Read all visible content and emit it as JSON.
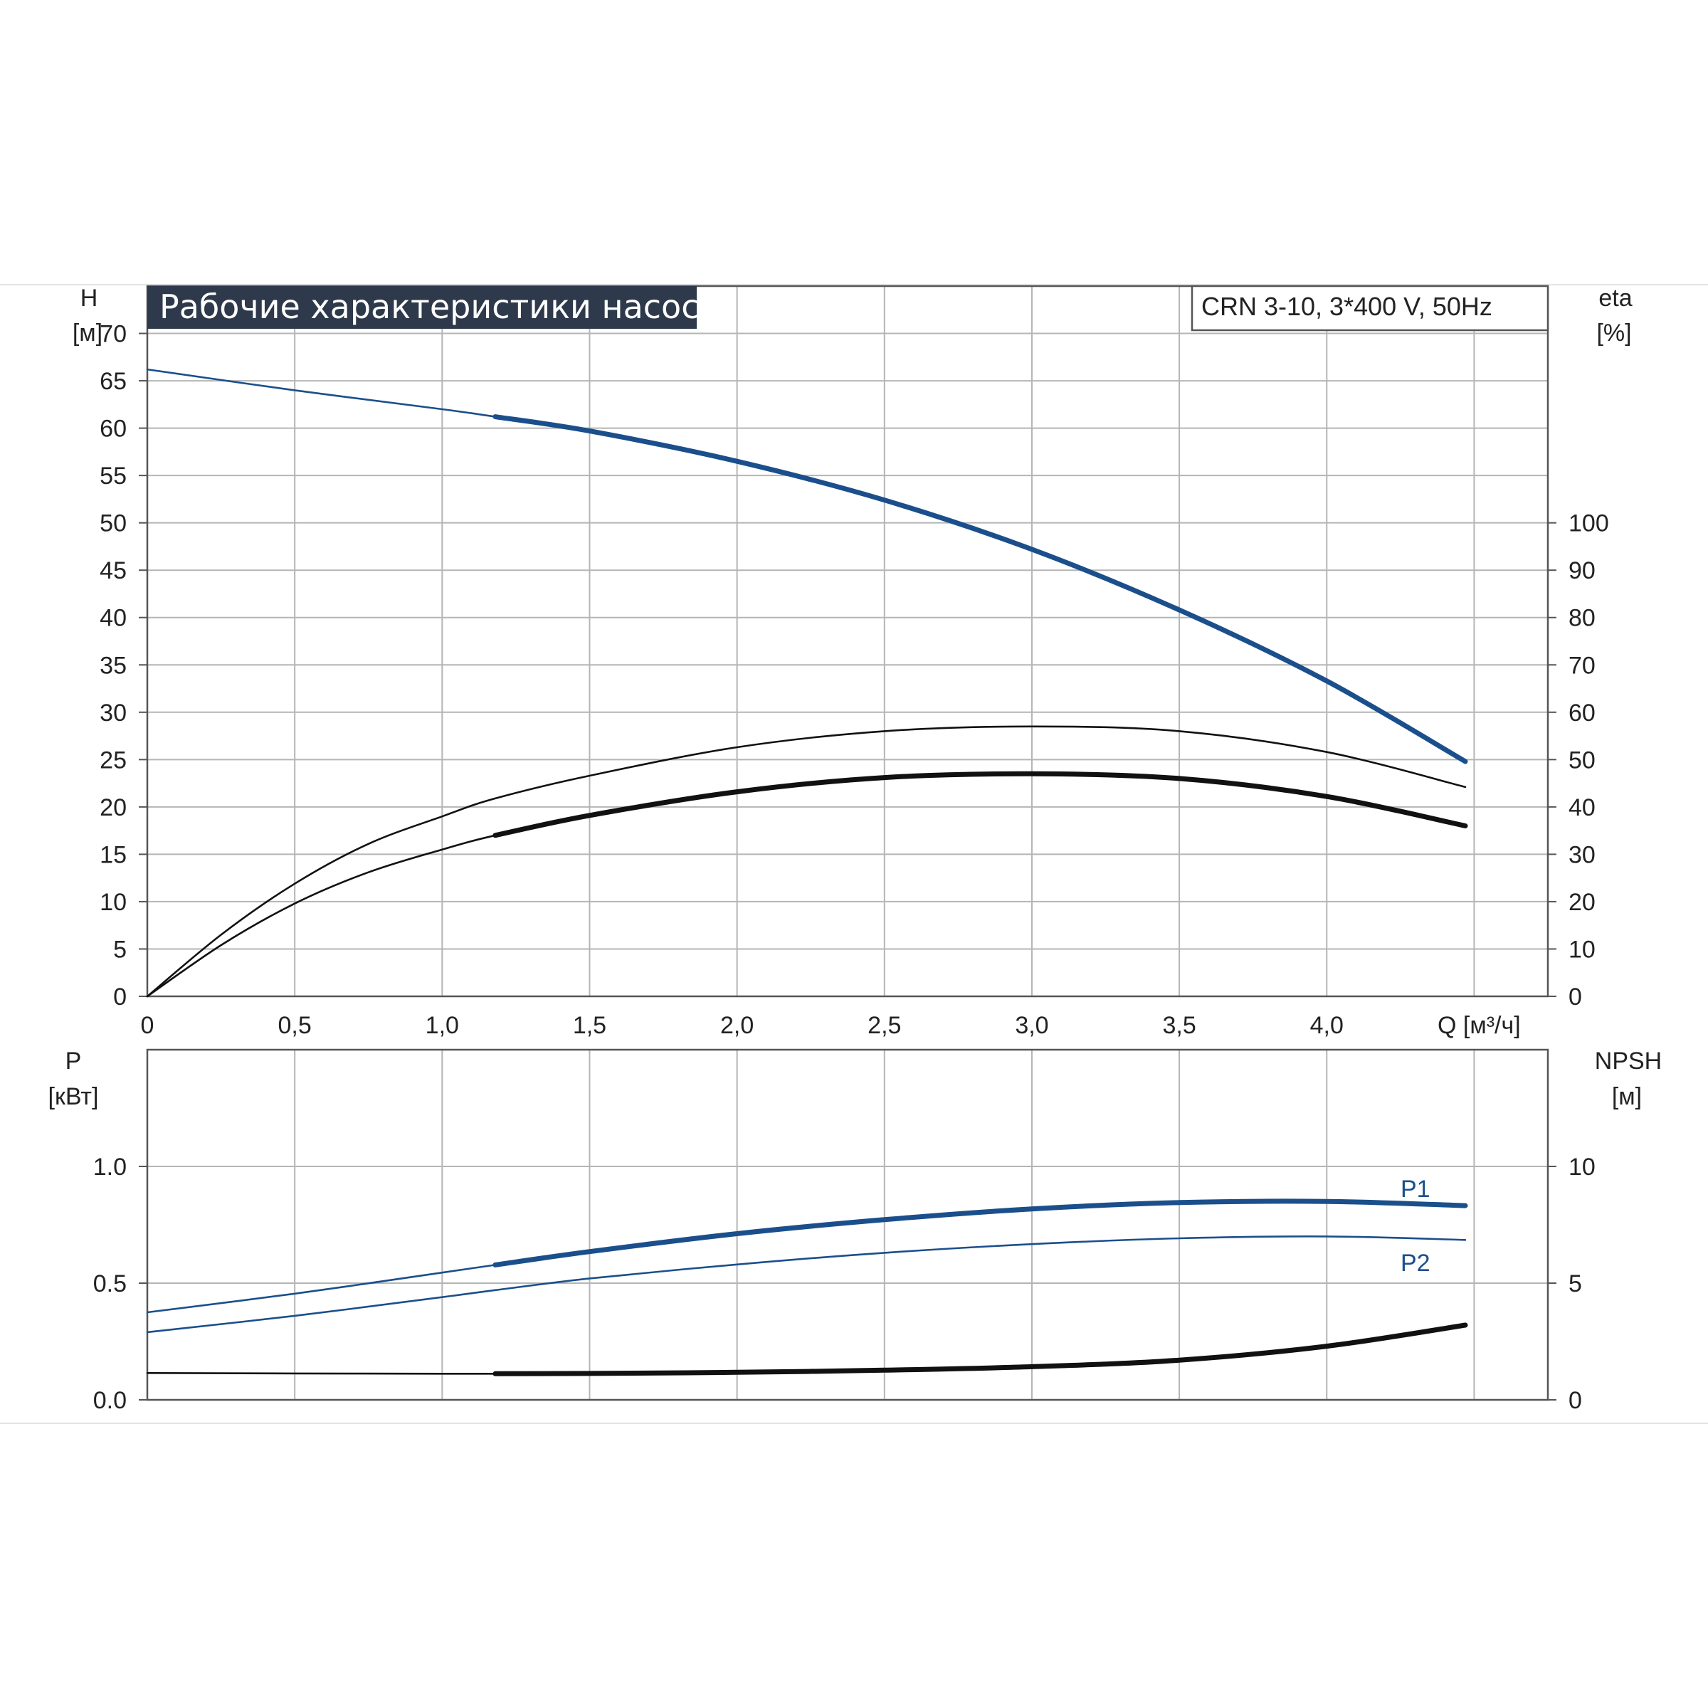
{
  "colors": {
    "blue": "#1b4f8c",
    "black": "#111111",
    "title_bg": "#2e3a4b",
    "grid": "#b5b5b5"
  },
  "header": {
    "title": "Рабочие характеристики насоса",
    "model": "CRN 3-10, 3*400 V, 50Hz"
  },
  "axes": {
    "h_label_1": "H",
    "h_label_2": "[м]",
    "eta_label_1": "eta",
    "eta_label_2": "[%]",
    "q_label": "Q [м³/ч]",
    "p_label_1": "P",
    "p_label_2": "[кВт]",
    "npsh_label_1": "NPSH",
    "npsh_label_2": "[м]"
  },
  "chart_data": [
    {
      "type": "line",
      "panel": "top",
      "x_label": "Q [м³/ч]",
      "xlim": [
        0,
        4.75
      ],
      "x_ticks": [
        0,
        0.5,
        1.0,
        1.5,
        2.0,
        2.5,
        3.0,
        3.5,
        4.0
      ],
      "x_tick_labels": [
        "0",
        "0,5",
        "1,0",
        "1,5",
        "2,0",
        "2,5",
        "3,0",
        "3,5",
        "4,0"
      ],
      "y_left": {
        "label": "H [м]",
        "ylim": [
          0,
          75
        ],
        "ticks": [
          0,
          5,
          10,
          15,
          20,
          25,
          30,
          35,
          40,
          45,
          50,
          55,
          60,
          65,
          70
        ]
      },
      "y_right": {
        "label": "eta [%]",
        "ylim": [
          0,
          150
        ],
        "ticks": [
          0,
          10,
          20,
          30,
          40,
          50,
          60,
          70,
          80,
          90,
          100
        ]
      },
      "grid": true,
      "series": [
        {
          "color": "#1b4f8c",
          "axis": "left",
          "thick_from": 1.18,
          "x": [
            0,
            0.5,
            1.0,
            1.18,
            1.5,
            2.0,
            2.5,
            3.0,
            3.5,
            4.0,
            4.47
          ],
          "y": [
            66.2,
            64.0,
            62.0,
            61.2,
            59.7,
            56.5,
            52.4,
            47.2,
            40.8,
            33.3,
            24.8
          ]
        },
        {
          "color": "#111111",
          "axis": "right",
          "thick_from": 99,
          "x": [
            0,
            0.25,
            0.5,
            0.75,
            1.0,
            1.18,
            1.5,
            2.0,
            2.5,
            3.0,
            3.5,
            4.0,
            4.47
          ],
          "y": [
            0,
            13.0,
            23.8,
            32.2,
            38.0,
            41.8,
            46.6,
            52.6,
            56.0,
            57.0,
            56.0,
            51.6,
            44.2
          ]
        },
        {
          "color": "#111111",
          "axis": "right",
          "thick_from": 1.18,
          "x": [
            0,
            0.25,
            0.5,
            0.75,
            1.0,
            1.18,
            1.5,
            2.0,
            2.5,
            3.0,
            3.5,
            4.0,
            4.47
          ],
          "y": [
            0,
            10.8,
            19.6,
            26.2,
            31.0,
            34.0,
            38.2,
            43.2,
            46.2,
            47.0,
            46.0,
            42.2,
            36.0
          ]
        }
      ]
    },
    {
      "type": "line",
      "panel": "bottom",
      "xlim": [
        0,
        4.75
      ],
      "y_left": {
        "label": "P [кВт]",
        "ylim": [
          0,
          1.5
        ],
        "ticks": [
          0.0,
          0.5,
          1.0
        ],
        "tick_labels": [
          "0.0",
          "0.5",
          "1.0"
        ]
      },
      "y_right": {
        "label": "NPSH [м]",
        "ylim": [
          0,
          15
        ],
        "ticks": [
          0,
          5,
          10
        ]
      },
      "grid": true,
      "series": [
        {
          "name": "P1",
          "color": "#1b4f8c",
          "axis": "left",
          "thick_from": 1.18,
          "x": [
            0,
            0.5,
            1.0,
            1.18,
            1.5,
            2.0,
            2.5,
            3.0,
            3.5,
            4.0,
            4.47
          ],
          "y": [
            0.375,
            0.455,
            0.545,
            0.578,
            0.635,
            0.712,
            0.772,
            0.818,
            0.845,
            0.85,
            0.832
          ]
        },
        {
          "name": "P2",
          "color": "#1b4f8c",
          "axis": "left",
          "thick_from": 99,
          "x": [
            0,
            0.5,
            1.0,
            1.18,
            1.5,
            2.0,
            2.5,
            3.0,
            3.5,
            4.0,
            4.47
          ],
          "y": [
            0.29,
            0.36,
            0.44,
            0.47,
            0.52,
            0.58,
            0.63,
            0.667,
            0.692,
            0.7,
            0.685
          ]
        },
        {
          "color": "#111111",
          "axis": "right",
          "thick_from": 1.18,
          "x": [
            0,
            0.5,
            1.0,
            1.18,
            1.5,
            2.0,
            2.5,
            3.0,
            3.5,
            4.0,
            4.47
          ],
          "y": [
            1.15,
            1.13,
            1.12,
            1.12,
            1.13,
            1.18,
            1.27,
            1.42,
            1.7,
            2.3,
            3.2
          ]
        }
      ]
    }
  ]
}
